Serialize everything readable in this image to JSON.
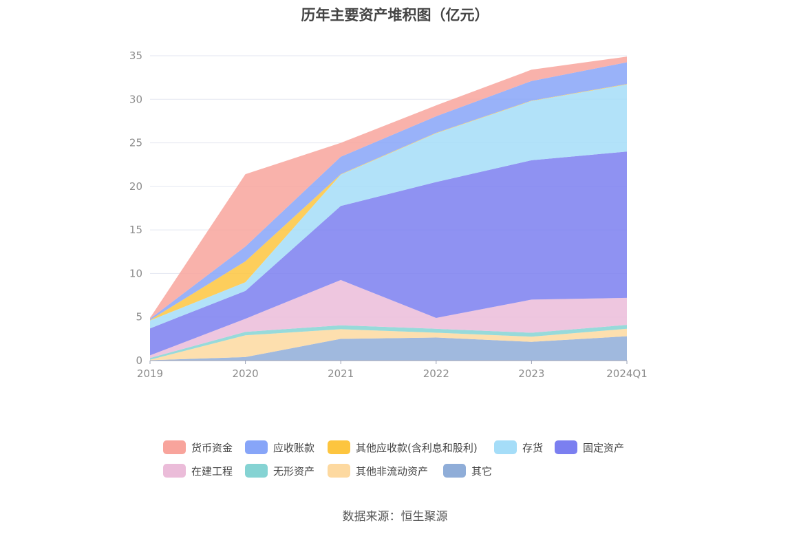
{
  "chart_data": {
    "type": "area",
    "title": "历年主要资产堆积图（亿元）",
    "stacked": true,
    "categories": [
      "2019",
      "2020",
      "2021",
      "2022",
      "2023",
      "2024Q1"
    ],
    "ylim": [
      0,
      35
    ],
    "yticks": [
      "0",
      "5",
      "10",
      "15",
      "20",
      "25",
      "30",
      "35"
    ],
    "grid": true,
    "legend_position": "bottom",
    "series": [
      {
        "name": "其它",
        "color": "#8fadd8",
        "values": [
          0.05,
          0.4,
          2.5,
          2.65,
          2.15,
          2.8
        ]
      },
      {
        "name": "其他非流动资产",
        "color": "#fdd9a0",
        "values": [
          0.05,
          2.5,
          1.1,
          0.55,
          0.6,
          0.85
        ]
      },
      {
        "name": "无形资产",
        "color": "#85d3d3",
        "values": [
          0.2,
          0.4,
          0.45,
          0.45,
          0.45,
          0.45
        ]
      },
      {
        "name": "在建工程",
        "color": "#ebbcd9",
        "values": [
          0.3,
          1.5,
          5.2,
          1.25,
          3.8,
          3.1
        ]
      },
      {
        "name": "固定资产",
        "color": "#7b7ff0",
        "values": [
          3.1,
          3.2,
          8.5,
          15.6,
          16.0,
          16.8
        ]
      },
      {
        "name": "存货",
        "color": "#a5ddf8",
        "values": [
          0.9,
          1.0,
          3.6,
          5.6,
          6.8,
          7.7
        ]
      },
      {
        "name": "其他应收款(含利息和股利)",
        "color": "#fdc53f",
        "values": [
          0.05,
          2.4,
          0.05,
          0.05,
          0.05,
          0.05
        ]
      },
      {
        "name": "应收账款",
        "color": "#87a5f8",
        "values": [
          0.15,
          1.7,
          2.0,
          1.9,
          2.25,
          2.5
        ]
      },
      {
        "name": "货币资金",
        "color": "#f8a49c",
        "values": [
          0.1,
          8.3,
          1.6,
          1.25,
          1.3,
          0.65
        ]
      }
    ]
  },
  "legend": {
    "row1": [
      "货币资金",
      "应收账款",
      "其他应收款(含利息和股利)",
      "存货",
      "固定资产"
    ],
    "row2": [
      "在建工程",
      "无形资产",
      "其他非流动资产",
      "其它"
    ]
  },
  "footer": {
    "source": "数据来源：恒生聚源"
  }
}
